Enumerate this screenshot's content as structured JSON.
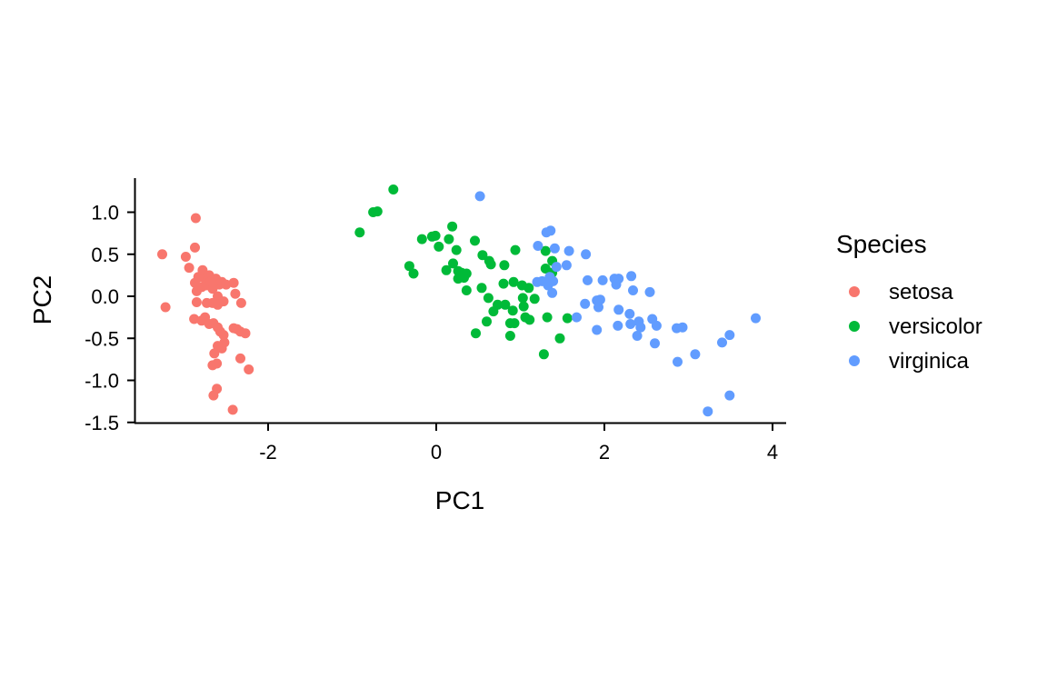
{
  "chart_data": {
    "type": "scatter",
    "xlabel": "PC1",
    "ylabel": "PC2",
    "xlim": [
      -3.5,
      4.15
    ],
    "ylim": [
      -1.5,
      1.4
    ],
    "xticks": [
      -2,
      0,
      2,
      4
    ],
    "xtick_labels": [
      "-2",
      "0",
      "2",
      "4"
    ],
    "yticks": [
      1.0,
      0.5,
      0.0,
      -0.5,
      -1.0,
      -1.5
    ],
    "ytick_labels": [
      "1.0",
      "0.5",
      "0.0",
      "-0.5",
      "-1.0",
      "-1.5"
    ],
    "grid": false,
    "legend": {
      "title": "Species",
      "position": "right"
    },
    "series": [
      {
        "name": "setosa",
        "color": "#F8766D",
        "points": [
          [
            -2.86,
            0.93
          ],
          [
            -3.26,
            0.5
          ],
          [
            -3.22,
            -0.13
          ],
          [
            -2.98,
            0.47
          ],
          [
            -2.94,
            0.34
          ],
          [
            -2.87,
            0.58
          ],
          [
            -2.83,
            0.23
          ],
          [
            -2.87,
            0.16
          ],
          [
            -2.81,
            0.23
          ],
          [
            -2.78,
            0.31
          ],
          [
            -2.76,
            0.22
          ],
          [
            -2.72,
            0.24
          ],
          [
            -2.7,
            0.25
          ],
          [
            -2.67,
            0.11
          ],
          [
            -2.64,
            0.15
          ],
          [
            -2.62,
            0.21
          ],
          [
            -2.58,
            0.14
          ],
          [
            -2.55,
            0.17
          ],
          [
            -2.5,
            0.14
          ],
          [
            -2.41,
            0.16
          ],
          [
            -2.85,
            0.06
          ],
          [
            -2.79,
            0.11
          ],
          [
            -2.74,
            0.13
          ],
          [
            -2.66,
            0.09
          ],
          [
            -2.68,
            0.18
          ],
          [
            -2.6,
            0.0
          ],
          [
            -2.66,
            -0.08
          ],
          [
            -2.73,
            -0.08
          ],
          [
            -2.6,
            -0.1
          ],
          [
            -2.53,
            -0.06
          ],
          [
            -2.39,
            0.03
          ],
          [
            -2.32,
            -0.08
          ],
          [
            -2.85,
            -0.07
          ],
          [
            -2.88,
            -0.27
          ],
          [
            -2.79,
            -0.29
          ],
          [
            -2.75,
            -0.25
          ],
          [
            -2.7,
            -0.33
          ],
          [
            -2.65,
            -0.32
          ],
          [
            -2.6,
            -0.37
          ],
          [
            -2.57,
            -0.42
          ],
          [
            -2.53,
            -0.46
          ],
          [
            -2.52,
            -0.55
          ],
          [
            -2.6,
            -0.59
          ],
          [
            -2.55,
            -0.62
          ],
          [
            -2.37,
            -0.39
          ],
          [
            -2.33,
            -0.42
          ],
          [
            -2.41,
            -0.38
          ],
          [
            -2.27,
            -0.44
          ],
          [
            -2.64,
            -0.68
          ],
          [
            -2.66,
            -0.82
          ],
          [
            -2.61,
            -0.8
          ],
          [
            -2.33,
            -0.74
          ],
          [
            -2.23,
            -0.87
          ],
          [
            -2.61,
            -1.1
          ],
          [
            -2.65,
            -1.18
          ],
          [
            -2.42,
            -1.35
          ]
        ]
      },
      {
        "name": "versicolor",
        "color": "#00BA38",
        "points": [
          [
            -0.51,
            1.27
          ],
          [
            -0.75,
            1.0
          ],
          [
            -0.7,
            1.01
          ],
          [
            -0.91,
            0.76
          ],
          [
            -0.17,
            0.68
          ],
          [
            -0.05,
            0.71
          ],
          [
            -0.01,
            0.72
          ],
          [
            0.03,
            0.59
          ],
          [
            0.15,
            0.68
          ],
          [
            0.19,
            0.83
          ],
          [
            0.46,
            0.66
          ],
          [
            0.94,
            0.55
          ],
          [
            0.55,
            0.49
          ],
          [
            0.63,
            0.42
          ],
          [
            0.65,
            0.38
          ],
          [
            0.81,
            0.37
          ],
          [
            1.3,
            0.54
          ],
          [
            1.38,
            0.42
          ],
          [
            1.3,
            0.33
          ],
          [
            1.38,
            0.28
          ],
          [
            -0.32,
            0.36
          ],
          [
            -0.27,
            0.27
          ],
          [
            0.12,
            0.31
          ],
          [
            0.2,
            0.39
          ],
          [
            0.24,
            0.55
          ],
          [
            0.26,
            0.3
          ],
          [
            0.3,
            0.28
          ],
          [
            0.36,
            0.27
          ],
          [
            0.26,
            0.21
          ],
          [
            0.33,
            0.22
          ],
          [
            0.54,
            0.1
          ],
          [
            0.36,
            0.07
          ],
          [
            0.8,
            0.15
          ],
          [
            0.92,
            0.17
          ],
          [
            1.02,
            0.13
          ],
          [
            1.1,
            0.1
          ],
          [
            1.17,
            -0.03
          ],
          [
            1.03,
            -0.02
          ],
          [
            0.62,
            -0.02
          ],
          [
            0.68,
            -0.18
          ],
          [
            0.73,
            -0.1
          ],
          [
            0.6,
            -0.3
          ],
          [
            0.82,
            -0.1
          ],
          [
            1.04,
            -0.12
          ],
          [
            1.06,
            -0.25
          ],
          [
            0.88,
            -0.32
          ],
          [
            0.93,
            -0.32
          ],
          [
            1.11,
            -0.28
          ],
          [
            1.32,
            -0.25
          ],
          [
            1.56,
            -0.26
          ],
          [
            0.88,
            -0.47
          ],
          [
            1.47,
            -0.5
          ],
          [
            1.28,
            -0.69
          ],
          [
            0.91,
            -0.17
          ],
          [
            0.47,
            -0.44
          ]
        ]
      },
      {
        "name": "virginica",
        "color": "#619CFF",
        "points": [
          [
            0.52,
            1.19
          ],
          [
            1.31,
            0.76
          ],
          [
            1.36,
            0.78
          ],
          [
            1.21,
            0.6
          ],
          [
            1.41,
            0.57
          ],
          [
            1.58,
            0.54
          ],
          [
            1.78,
            0.5
          ],
          [
            1.43,
            0.35
          ],
          [
            1.55,
            0.37
          ],
          [
            1.2,
            0.17
          ],
          [
            1.33,
            0.13
          ],
          [
            1.26,
            0.18
          ],
          [
            1.35,
            0.23
          ],
          [
            1.8,
            0.19
          ],
          [
            1.98,
            0.19
          ],
          [
            2.12,
            0.21
          ],
          [
            2.17,
            0.21
          ],
          [
            2.32,
            0.24
          ],
          [
            2.14,
            0.14
          ],
          [
            2.34,
            0.07
          ],
          [
            2.54,
            0.05
          ],
          [
            1.38,
            0.04
          ],
          [
            1.39,
            0.18
          ],
          [
            1.77,
            -0.09
          ],
          [
            1.91,
            -0.05
          ],
          [
            1.95,
            -0.04
          ],
          [
            1.93,
            -0.13
          ],
          [
            2.17,
            -0.16
          ],
          [
            2.3,
            -0.21
          ],
          [
            2.16,
            -0.35
          ],
          [
            2.41,
            -0.3
          ],
          [
            2.43,
            -0.37
          ],
          [
            2.57,
            -0.27
          ],
          [
            2.62,
            -0.35
          ],
          [
            2.86,
            -0.38
          ],
          [
            2.93,
            -0.37
          ],
          [
            1.67,
            -0.25
          ],
          [
            1.91,
            -0.4
          ],
          [
            2.31,
            -0.33
          ],
          [
            2.39,
            -0.47
          ],
          [
            2.6,
            -0.56
          ],
          [
            2.87,
            -0.78
          ],
          [
            3.08,
            -0.69
          ],
          [
            3.4,
            -0.55
          ],
          [
            3.49,
            -0.46
          ],
          [
            3.8,
            -0.26
          ],
          [
            3.49,
            -1.18
          ],
          [
            3.23,
            -1.37
          ]
        ]
      }
    ]
  }
}
